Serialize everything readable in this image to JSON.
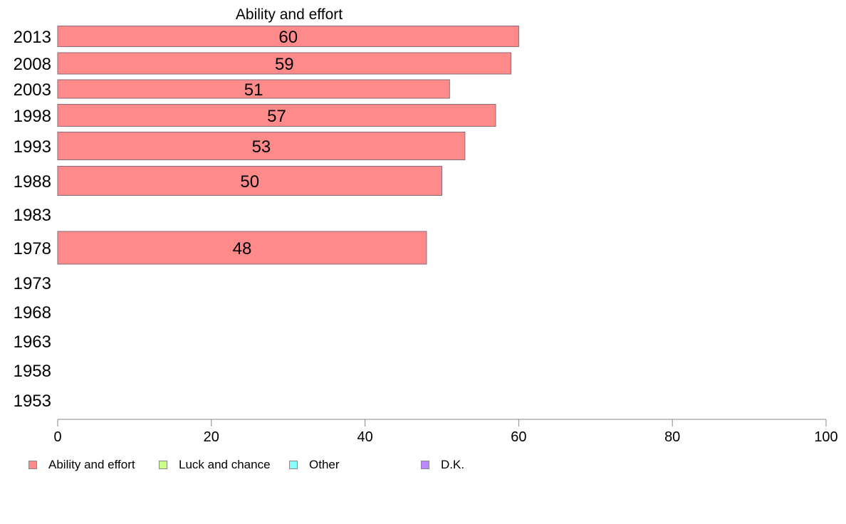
{
  "chart_data": {
    "type": "bar",
    "orientation": "horizontal",
    "title": "Ability and effort",
    "categories": [
      "2013",
      "2008",
      "2003",
      "1998",
      "1993",
      "1988",
      "1983",
      "1978",
      "1973",
      "1968",
      "1963",
      "1958",
      "1953"
    ],
    "series": [
      {
        "name": "Ability and effort",
        "color": "#ff8a8a",
        "values": [
          60,
          59,
          51,
          57,
          53,
          50,
          null,
          48,
          null,
          null,
          null,
          null,
          null
        ]
      }
    ],
    "data_labels": [
      "60",
      "59",
      "51",
      "57",
      "53",
      "50",
      "",
      "48",
      "",
      "",
      "",
      "",
      ""
    ],
    "xlim": [
      0,
      100
    ],
    "xticks": [
      "0",
      "20",
      "40",
      "60",
      "80",
      "100"
    ],
    "grid": false,
    "legend_position": "bottom-left",
    "legend": [
      {
        "label": "Ability and effort",
        "color": "#ff8a8a"
      },
      {
        "label": "Luck and chance",
        "color": "#ccff88"
      },
      {
        "label": "Other",
        "color": "#88ffff"
      },
      {
        "label": "D.K.",
        "color": "#bb88ff"
      }
    ]
  }
}
